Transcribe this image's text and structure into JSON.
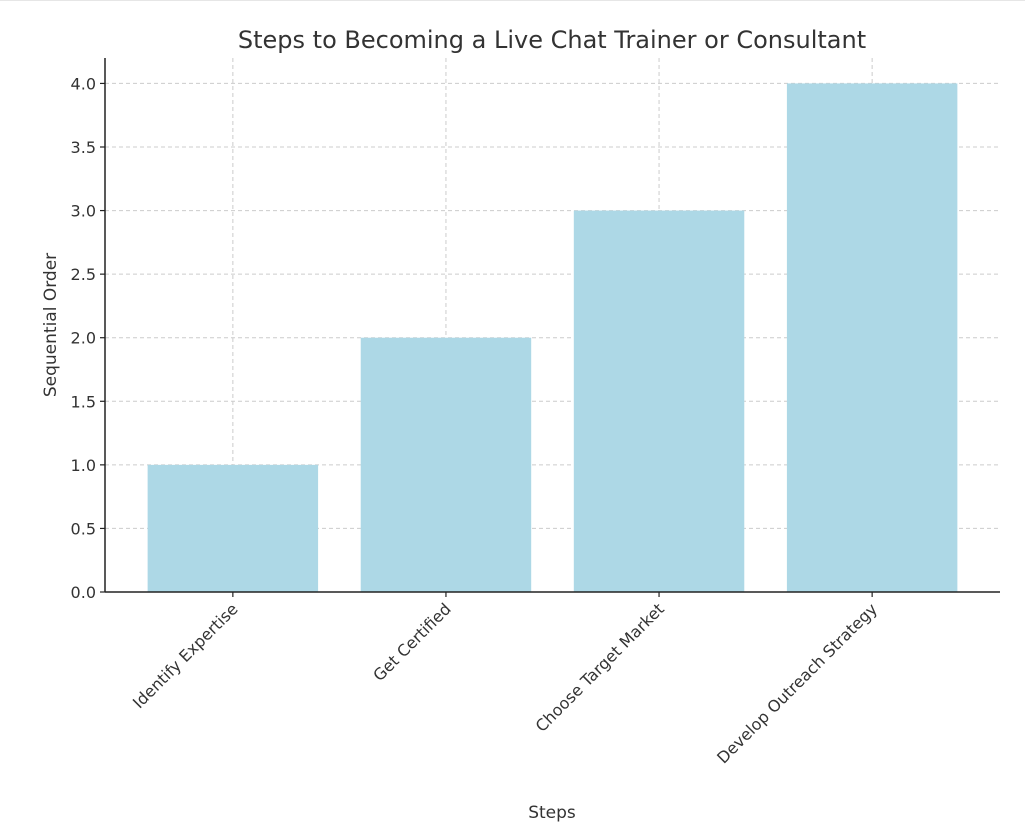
{
  "chart_data": {
    "type": "bar",
    "title": "Steps to Becoming a Live Chat Trainer or Consultant",
    "xlabel": "Steps",
    "ylabel": "Sequential Order",
    "categories": [
      "Identify Expertise",
      "Get Certified",
      "Choose Target Market",
      "Develop Outreach Strategy"
    ],
    "values": [
      1,
      2,
      3,
      4
    ],
    "ylim": [
      0,
      4.2
    ],
    "yticks": [
      "0.0",
      "0.5",
      "1.0",
      "1.5",
      "2.0",
      "2.5",
      "3.0",
      "3.5",
      "4.0"
    ],
    "grid": true,
    "bar_color": "#add8e6"
  }
}
